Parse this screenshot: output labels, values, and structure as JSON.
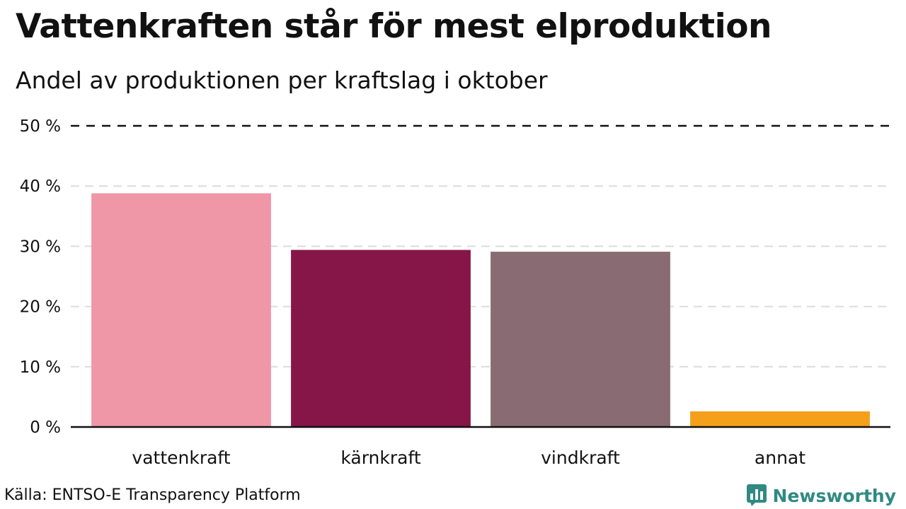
{
  "title": "Vattenkraften står för mest elproduktion",
  "subtitle": "Andel av produktionen per kraftslag i oktober",
  "source": "Källa: ENTSO-E Transparency Platform",
  "brand": {
    "name": "Newsworthy",
    "logo_icon": "newsworthy-bar-chart-icon",
    "color": "#2f8a83"
  },
  "chart_data": {
    "type": "bar",
    "categories": [
      "vattenkraft",
      "kärnkraft",
      "vindkraft",
      "annat"
    ],
    "values": [
      38.8,
      29.4,
      29.1,
      2.6
    ],
    "colors": [
      "#ef97a7",
      "#861647",
      "#886b73",
      "#f5a01a"
    ],
    "ylim": [
      0,
      50
    ],
    "yticks": [
      0,
      10,
      20,
      30,
      40,
      50
    ],
    "ytick_labels": [
      "0 %",
      "10 %",
      "20 %",
      "30 %",
      "40 %",
      "50 %"
    ],
    "xlabel": "",
    "ylabel": "",
    "grid": true
  }
}
